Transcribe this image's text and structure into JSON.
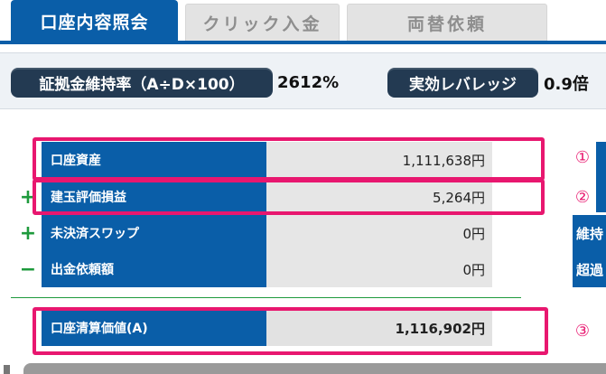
{
  "tabs": [
    {
      "label": "口座内容照会",
      "active": true
    },
    {
      "label": "クリック入金",
      "active": false
    },
    {
      "label": "両替依頼",
      "active": false
    }
  ],
  "summary": {
    "margin_ratio_label": "証拠金維持率（A÷D×100）",
    "margin_ratio_value": "2612%",
    "leverage_label": "実効レバレッジ",
    "leverage_value": "0.9倍"
  },
  "rows": [
    {
      "sign": "",
      "label": "口座資産",
      "value": "1,111,638円",
      "marker": "①"
    },
    {
      "sign": "+",
      "label": "建玉評価損益",
      "value": "5,264円",
      "marker": "②"
    },
    {
      "sign": "+",
      "label": "未決済スワップ",
      "value": "0円"
    },
    {
      "sign": "−",
      "label": "出金依頼額",
      "value": "0円"
    }
  ],
  "total": {
    "label": "口座清算価値(A)",
    "value": "1,116,902円",
    "marker": "③"
  },
  "side_panel": {
    "row3": "維持",
    "row4": "超過"
  },
  "colors": {
    "tab_blue": "#0a5ea8",
    "pill_navy": "#233a52",
    "highlight_pink": "#e8176f",
    "sign_green": "#1e9a3c"
  }
}
